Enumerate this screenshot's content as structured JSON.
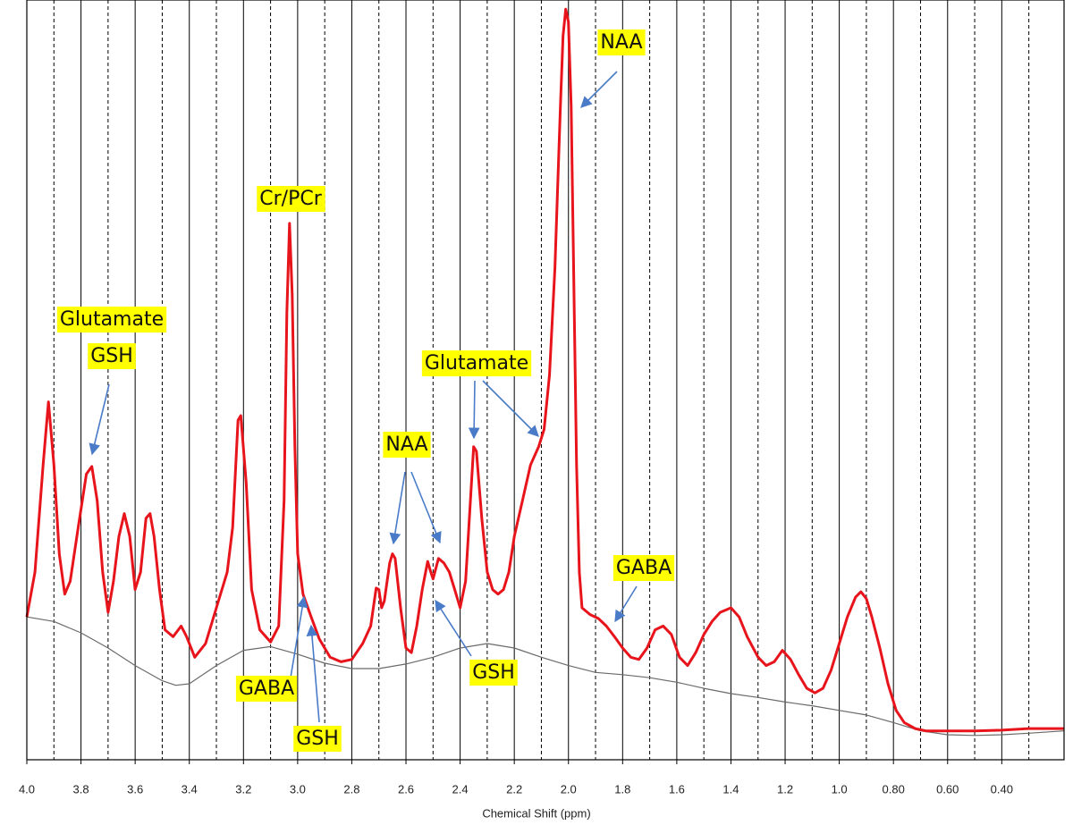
{
  "chart_data": {
    "type": "line",
    "x_label": "Chemical Shift (ppm)",
    "xlim": [
      4.0,
      0.17
    ],
    "ylim": [
      0,
      100
    ],
    "xticks": [
      {
        "value": 4.0,
        "label": "4.0"
      },
      3.8,
      3.6,
      3.4,
      3.2,
      {
        "value": 3.0,
        "label": "3.0"
      },
      2.8,
      2.6,
      2.4,
      2.2,
      {
        "value": 2.0,
        "label": "2.0"
      },
      1.8,
      1.6,
      1.4,
      1.2,
      {
        "value": 1.0,
        "label": "1.0"
      },
      {
        "value": 0.8,
        "label": "0.80"
      },
      {
        "value": 0.6,
        "label": "0.60"
      },
      {
        "value": 0.4,
        "label": "0.40"
      }
    ],
    "xgrid_minor": [
      3.9,
      3.7,
      3.5,
      3.3,
      3.1,
      2.9,
      2.7,
      2.5,
      2.3,
      2.1,
      1.9,
      1.7,
      1.5,
      1.3,
      1.1,
      0.9,
      0.7,
      0.5,
      0.3
    ],
    "grid": true,
    "series": [
      {
        "color": "#e8141c",
        "x": [
          4.0,
          3.97,
          3.94,
          3.92,
          3.9,
          3.88,
          3.86,
          3.84,
          3.81,
          3.78,
          3.76,
          3.74,
          3.72,
          3.7,
          3.68,
          3.66,
          3.64,
          3.62,
          3.6,
          3.58,
          3.56,
          3.545,
          3.53,
          3.51,
          3.49,
          3.46,
          3.43,
          3.41,
          3.38,
          3.34,
          3.3,
          3.26,
          3.24,
          3.22,
          3.21,
          3.19,
          3.17,
          3.14,
          3.1,
          3.07,
          3.05,
          3.04,
          3.03,
          3.02,
          3.01,
          3.0,
          2.98,
          2.95,
          2.92,
          2.88,
          2.84,
          2.8,
          2.76,
          2.73,
          2.71,
          2.7,
          2.69,
          2.68,
          2.66,
          2.65,
          2.64,
          2.62,
          2.6,
          2.58,
          2.56,
          2.54,
          2.52,
          2.51,
          2.5,
          2.48,
          2.46,
          2.44,
          2.42,
          2.4,
          2.38,
          2.36,
          2.35,
          2.34,
          2.32,
          2.3,
          2.28,
          2.26,
          2.24,
          2.22,
          2.2,
          2.17,
          2.14,
          2.11,
          2.09,
          2.07,
          2.05,
          2.03,
          2.02,
          2.01,
          2.0,
          1.99,
          1.98,
          1.97,
          1.96,
          1.95,
          1.92,
          1.89,
          1.86,
          1.83,
          1.8,
          1.77,
          1.74,
          1.71,
          1.68,
          1.65,
          1.62,
          1.59,
          1.56,
          1.53,
          1.5,
          1.47,
          1.44,
          1.4,
          1.37,
          1.34,
          1.3,
          1.27,
          1.24,
          1.21,
          1.18,
          1.15,
          1.12,
          1.09,
          1.06,
          1.03,
          1.0,
          0.97,
          0.94,
          0.92,
          0.9,
          0.88,
          0.85,
          0.82,
          0.79,
          0.76,
          0.72,
          0.68,
          0.6,
          0.5,
          0.4,
          0.3,
          0.17
        ],
        "values": [
          18.8,
          24.7,
          38.8,
          47.1,
          38.8,
          27.1,
          21.8,
          23.5,
          30.6,
          37.6,
          38.6,
          34.1,
          24.7,
          19.4,
          23.5,
          29.4,
          32.4,
          29.4,
          22.4,
          24.7,
          31.8,
          32.4,
          29.4,
          22.4,
          17.1,
          16.2,
          17.6,
          16.2,
          13.5,
          15.3,
          20.0,
          24.7,
          30.6,
          44.7,
          45.3,
          36.5,
          22.4,
          17.1,
          15.5,
          17.6,
          34.1,
          58.8,
          70.6,
          61.2,
          41.2,
          27.1,
          21.8,
          18.8,
          15.9,
          13.5,
          12.9,
          13.2,
          15.3,
          17.6,
          22.6,
          22.4,
          20.0,
          20.9,
          25.9,
          27.1,
          26.5,
          20.0,
          14.7,
          14.1,
          17.6,
          22.4,
          26.1,
          24.9,
          23.8,
          26.5,
          25.9,
          24.7,
          22.4,
          20.0,
          23.5,
          35.3,
          41.2,
          40.6,
          31.8,
          24.7,
          22.4,
          21.8,
          22.4,
          24.7,
          29.4,
          34.1,
          38.8,
          41.2,
          43.5,
          50.6,
          64.7,
          85.9,
          95.3,
          98.8,
          97.1,
          85.9,
          62.4,
          38.8,
          24.7,
          20.0,
          19.1,
          18.6,
          17.6,
          16.2,
          14.7,
          13.5,
          13.2,
          14.7,
          17.1,
          17.6,
          16.5,
          13.5,
          12.4,
          14.1,
          16.5,
          18.2,
          19.4,
          20.0,
          18.8,
          16.2,
          13.5,
          12.4,
          12.9,
          14.4,
          13.2,
          11.2,
          9.4,
          8.8,
          9.4,
          11.8,
          15.3,
          18.8,
          21.4,
          22.1,
          21.2,
          18.8,
          14.7,
          10.0,
          6.5,
          4.9,
          4.1,
          3.8,
          3.8,
          3.8,
          3.9,
          4.1,
          4.1
        ]
      },
      {
        "color": "#6a6a6a",
        "x": [
          4.0,
          3.9,
          3.8,
          3.7,
          3.6,
          3.5,
          3.45,
          3.4,
          3.3,
          3.2,
          3.1,
          3.0,
          2.9,
          2.8,
          2.7,
          2.6,
          2.5,
          2.4,
          2.3,
          2.2,
          2.1,
          2.0,
          1.9,
          1.8,
          1.7,
          1.6,
          1.5,
          1.4,
          1.3,
          1.2,
          1.1,
          1.0,
          0.9,
          0.8,
          0.7,
          0.6,
          0.5,
          0.4,
          0.3,
          0.17
        ],
        "values": [
          18.8,
          18.2,
          16.7,
          14.7,
          12.4,
          10.4,
          9.8,
          10.0,
          12.4,
          14.4,
          14.9,
          13.9,
          12.7,
          12.0,
          12.0,
          12.6,
          13.5,
          14.7,
          15.3,
          14.7,
          13.5,
          12.4,
          11.5,
          11.2,
          10.8,
          10.2,
          9.4,
          8.7,
          8.2,
          7.6,
          7.1,
          6.5,
          5.9,
          4.9,
          3.8,
          3.3,
          3.2,
          3.3,
          3.5,
          3.8
        ]
      }
    ],
    "annotations": [
      "NAA",
      "Cr/PCr",
      "Glutamate",
      "GSH",
      "Glutamate",
      "NAA",
      "GABA",
      "GABA",
      "GSH",
      "GSH"
    ]
  }
}
